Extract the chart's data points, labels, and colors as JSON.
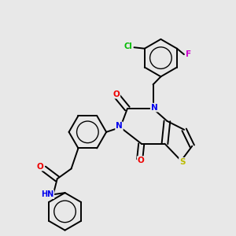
{
  "bg_color": "#e8e8e8",
  "atom_colors": {
    "C": "#000000",
    "N": "#0000ee",
    "O": "#ee0000",
    "S": "#bbbb00",
    "Cl": "#00bb00",
    "F": "#cc00cc",
    "H": "#000000"
  },
  "bond_color": "#000000",
  "bond_width": 1.4,
  "figsize": [
    3.0,
    3.0
  ],
  "dpi": 100,
  "xlim": [
    0,
    10
  ],
  "ylim": [
    0,
    10
  ]
}
